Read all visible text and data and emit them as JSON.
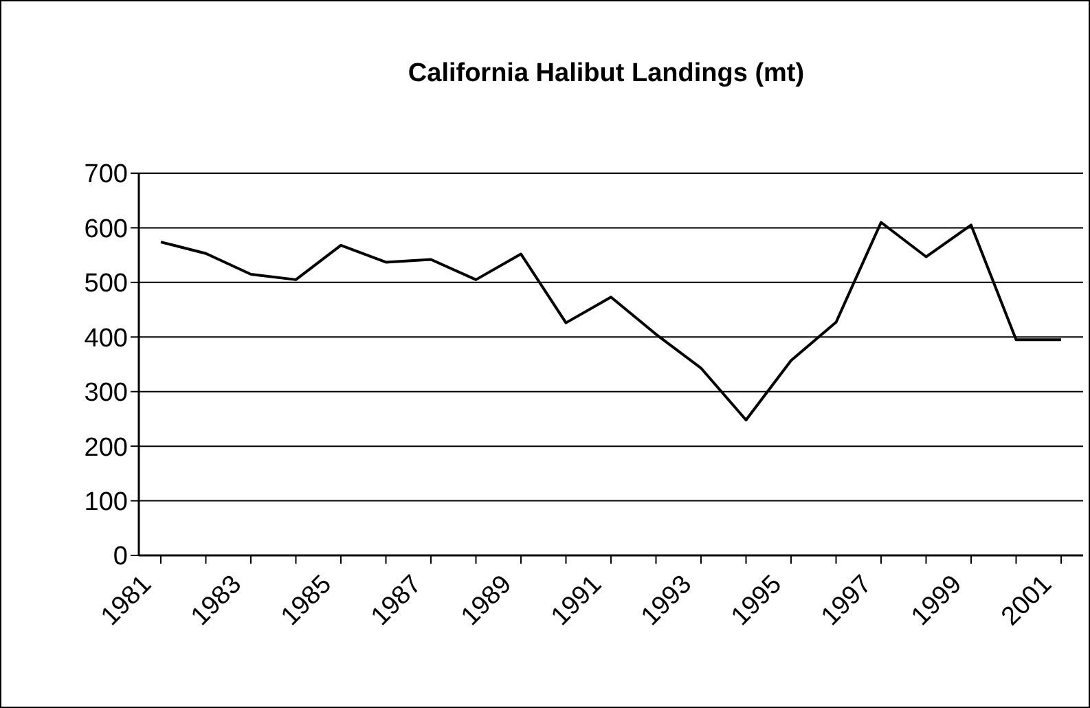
{
  "chart_data": {
    "type": "line",
    "title": "California Halibut Landings (mt)",
    "categories": [
      "1981",
      null,
      "1983",
      null,
      "1985",
      null,
      "1987",
      null,
      "1989",
      null,
      "1991",
      null,
      "1993",
      null,
      "1995",
      null,
      "1997",
      null,
      "1999",
      null,
      "2001"
    ],
    "series": [
      {
        "color": "#000000",
        "values": [
          574,
          553,
          515,
          505,
          568,
          537,
          542,
          505,
          552,
          426,
          473,
          405,
          343,
          248,
          357,
          427,
          610,
          547,
          605,
          395,
          395
        ]
      }
    ],
    "ylim": [
      0,
      700
    ],
    "yticks": [
      0,
      100,
      200,
      300,
      400,
      500,
      600,
      700
    ],
    "grid": "y",
    "marker": "none",
    "line_style": "solid"
  }
}
